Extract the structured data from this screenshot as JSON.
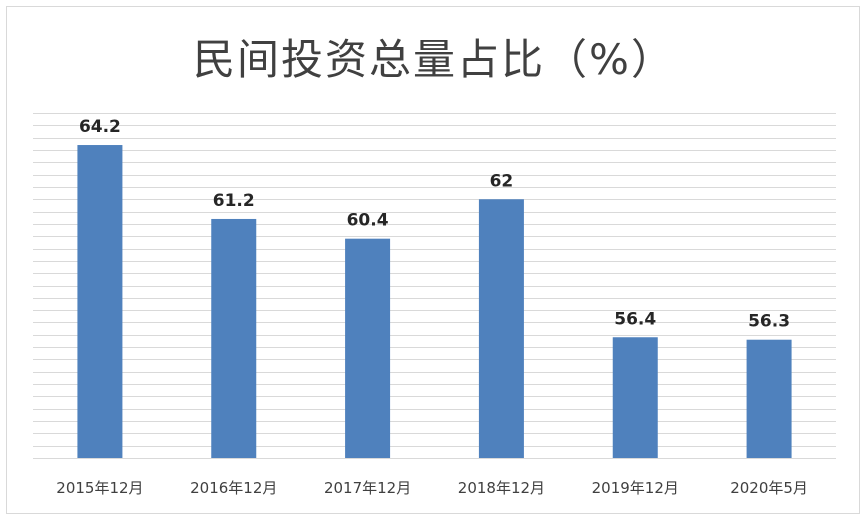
{
  "chart_data": {
    "type": "bar",
    "title": "民间投资总量占比（%）",
    "xlabel": "",
    "ylabel": "",
    "categories": [
      "2015年12月",
      "2016年12月",
      "2017年12月",
      "2018年12月",
      "2019年12月",
      "2020年5月"
    ],
    "values": [
      64.2,
      61.2,
      60.4,
      62,
      56.4,
      56.3
    ],
    "data_labels": [
      "64.2",
      "61.2",
      "60.4",
      "62",
      "56.4",
      "56.3"
    ],
    "ylim": [
      51.5,
      65.5
    ],
    "grid": true,
    "y_axis_labels_visible": false,
    "legend": "none",
    "bar_color": "#4f81bd"
  }
}
